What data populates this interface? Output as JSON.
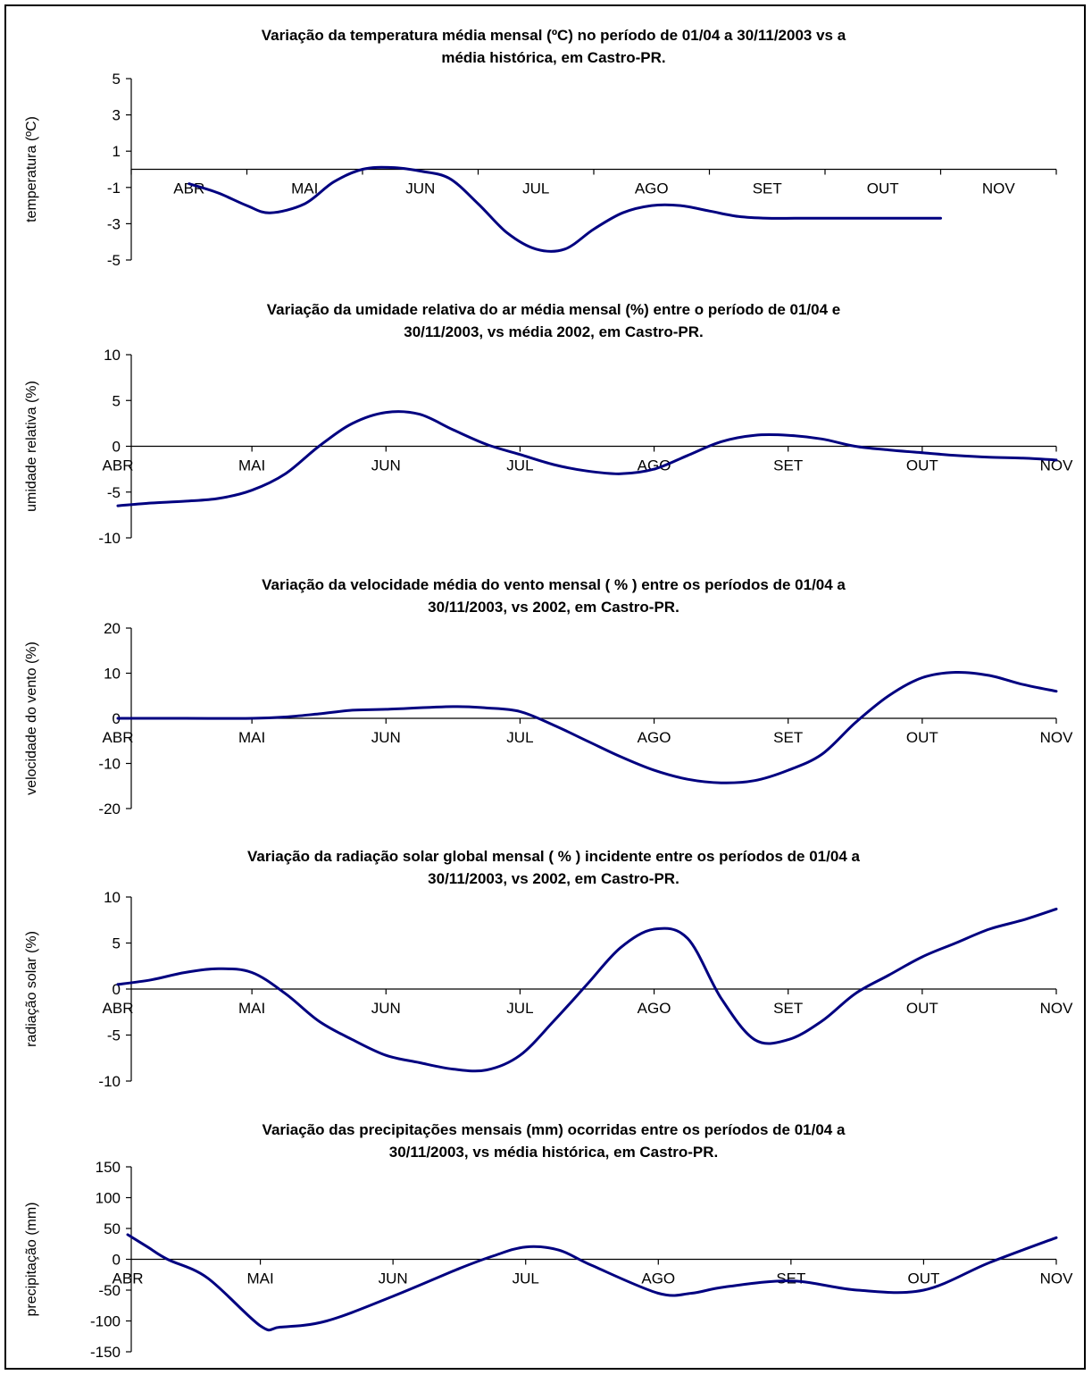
{
  "colors": {
    "line": "#000080",
    "axis": "#000000",
    "background": "#ffffff"
  },
  "chart_data": [
    {
      "type": "line",
      "title": "Variação da temperatura média mensal (ºC) no período de 01/04 a 30/11/2003 vs a média histórica, em Castro-PR.",
      "title_lines": [
        "Variação da temperatura média mensal (ºC) no período de 01/04 a 30/11/2003 vs a",
        "média histórica, em Castro-PR."
      ],
      "ylabel": "temperatura (ºC)",
      "xlabel": "",
      "ylim": [
        -5,
        5
      ],
      "yticks": [
        -5,
        -3,
        -1,
        1,
        3,
        5
      ],
      "categories": [
        "ABR",
        "MAI",
        "JUN",
        "JUL",
        "AGO",
        "SET",
        "OUT",
        "NOV"
      ],
      "x": [
        0.5,
        0.75,
        1.0,
        1.2,
        1.5,
        1.75,
        2.0,
        2.25,
        2.5,
        2.75,
        3.0,
        3.25,
        3.5,
        3.75,
        4.0,
        4.25,
        4.5,
        4.75,
        5.0,
        5.25,
        5.5,
        5.75,
        6.0,
        6.5,
        7.0
      ],
      "series": [
        {
          "values": [
            -0.8,
            -1.3,
            -2.0,
            -2.4,
            -1.9,
            -0.7,
            0.0,
            0.1,
            -0.1,
            -0.5,
            -1.9,
            -3.5,
            -4.4,
            -4.4,
            -3.3,
            -2.4,
            -2.0,
            -2.0,
            -2.3,
            -2.6,
            -2.7,
            -2.7,
            -2.7,
            -2.7,
            -2.7
          ]
        }
      ]
    },
    {
      "type": "line",
      "title": "Variação da umidade relativa do ar média mensal (%) entre o período de 01/04 e 30/11/2003, vs média 2002, em Castro-PR.",
      "title_lines": [
        "Variação da umidade relativa do ar média mensal (%) entre o período de 01/04 e",
        "30/11/2003, vs média 2002, em Castro-PR."
      ],
      "ylabel": "umidade relativa (%)",
      "xlabel": "",
      "ylim": [
        -10,
        10
      ],
      "yticks": [
        -10,
        -5,
        0,
        5,
        10
      ],
      "categories": [
        "ABR",
        "MAI",
        "JUN",
        "JUL",
        "AGO",
        "SET",
        "OUT",
        "NOV"
      ],
      "x": [
        0,
        0.25,
        0.5,
        0.75,
        1.0,
        1.25,
        1.5,
        1.75,
        2.0,
        2.25,
        2.5,
        2.75,
        3.0,
        3.25,
        3.5,
        3.75,
        4.0,
        4.25,
        4.5,
        4.75,
        5.0,
        5.25,
        5.5,
        5.75,
        6.0,
        6.25,
        6.5,
        6.75,
        7.0
      ],
      "series": [
        {
          "values": [
            -6.5,
            -6.2,
            -6.0,
            -5.7,
            -4.8,
            -3.0,
            0.0,
            2.5,
            3.7,
            3.5,
            1.8,
            0.2,
            -0.9,
            -2.0,
            -2.7,
            -3.0,
            -2.5,
            -1.0,
            0.5,
            1.2,
            1.2,
            0.8,
            0.0,
            -0.4,
            -0.7,
            -1.0,
            -1.2,
            -1.3,
            -1.5
          ]
        }
      ]
    },
    {
      "type": "line",
      "title": "Variação da velocidade média do vento mensal ( % ) entre os períodos de 01/04 a 30/11/2003, vs 2002, em Castro-PR.",
      "title_lines": [
        "Variação da velocidade média do vento mensal ( % ) entre os períodos de 01/04 a",
        "30/11/2003, vs 2002, em Castro-PR."
      ],
      "ylabel": "velocidade do vento (%)",
      "xlabel": "",
      "ylim": [
        -20,
        20
      ],
      "yticks": [
        -20,
        -10,
        0,
        10,
        20
      ],
      "categories": [
        "ABR",
        "MAI",
        "JUN",
        "JUL",
        "AGO",
        "SET",
        "OUT",
        "NOV"
      ],
      "x": [
        0,
        0.5,
        1.0,
        1.25,
        1.5,
        1.75,
        2.0,
        2.5,
        2.75,
        3.0,
        3.25,
        3.5,
        3.75,
        4.0,
        4.25,
        4.5,
        4.75,
        5.0,
        5.25,
        5.5,
        5.75,
        6.0,
        6.25,
        6.5,
        6.75,
        7.0
      ],
      "series": [
        {
          "values": [
            0,
            0,
            0,
            0.3,
            1.0,
            1.8,
            2.0,
            2.6,
            2.3,
            1.5,
            -1.5,
            -5.0,
            -8.5,
            -11.5,
            -13.5,
            -14.3,
            -13.8,
            -11.5,
            -8.0,
            -1.0,
            5.0,
            9.0,
            10.2,
            9.5,
            7.5,
            6.0
          ]
        }
      ]
    },
    {
      "type": "line",
      "title": "Variação da radiação solar global mensal ( % ) incidente entre os períodos de 01/04 a 30/11/2003, vs 2002, em Castro-PR.",
      "title_lines": [
        "Variação da radiação solar global mensal ( % ) incidente entre os períodos de 01/04 a",
        "30/11/2003, vs 2002, em Castro-PR."
      ],
      "ylabel": "radiação solar (%)",
      "xlabel": "",
      "ylim": [
        -10,
        10
      ],
      "yticks": [
        -10,
        -5,
        0,
        5,
        10
      ],
      "categories": [
        "ABR",
        "MAI",
        "JUN",
        "JUL",
        "AGO",
        "SET",
        "OUT",
        "NOV"
      ],
      "x": [
        0,
        0.25,
        0.5,
        0.75,
        1.0,
        1.25,
        1.5,
        1.75,
        2.0,
        2.25,
        2.5,
        2.75,
        3.0,
        3.25,
        3.5,
        3.75,
        4.0,
        4.25,
        4.5,
        4.75,
        5.0,
        5.25,
        5.5,
        5.75,
        6.0,
        6.25,
        6.5,
        6.75,
        7.0
      ],
      "series": [
        {
          "values": [
            0.5,
            1.0,
            1.8,
            2.2,
            1.8,
            -0.5,
            -3.5,
            -5.5,
            -7.2,
            -8.0,
            -8.7,
            -8.8,
            -7.2,
            -3.5,
            0.5,
            4.5,
            6.5,
            5.5,
            -1.0,
            -5.5,
            -5.5,
            -3.5,
            -0.5,
            1.5,
            3.5,
            5.0,
            6.5,
            7.5,
            8.7
          ]
        }
      ]
    },
    {
      "type": "line",
      "title": "Variação das precipitações mensais (mm) ocorridas entre os períodos de 01/04 a 30/11/2003, vs média histórica, em Castro-PR.",
      "title_lines": [
        "Variação das precipitações mensais (mm) ocorridas entre os períodos de 01/04 a",
        "30/11/2003, vs média histórica, em Castro-PR."
      ],
      "ylabel": "precipitação (mm)",
      "xlabel": "",
      "ylim": [
        -150,
        150
      ],
      "yticks": [
        -150,
        -100,
        -50,
        0,
        50,
        100,
        150
      ],
      "categories": [
        "ABR",
        "MAI",
        "JUN",
        "JUL",
        "AGO",
        "SET",
        "OUT",
        "NOV"
      ],
      "x": [
        0,
        0.15,
        0.3,
        0.6,
        1.0,
        1.15,
        1.5,
        2.0,
        2.5,
        2.75,
        3.0,
        3.25,
        3.5,
        4.0,
        4.25,
        4.5,
        5.0,
        5.5,
        6.0,
        6.5,
        7.0
      ],
      "series": [
        {
          "values": [
            40,
            20,
            0,
            -30,
            -108,
            -110,
            -100,
            -60,
            -15,
            5,
            20,
            15,
            -10,
            -55,
            -55,
            -45,
            -35,
            -50,
            -50,
            -5,
            35
          ]
        }
      ]
    }
  ]
}
